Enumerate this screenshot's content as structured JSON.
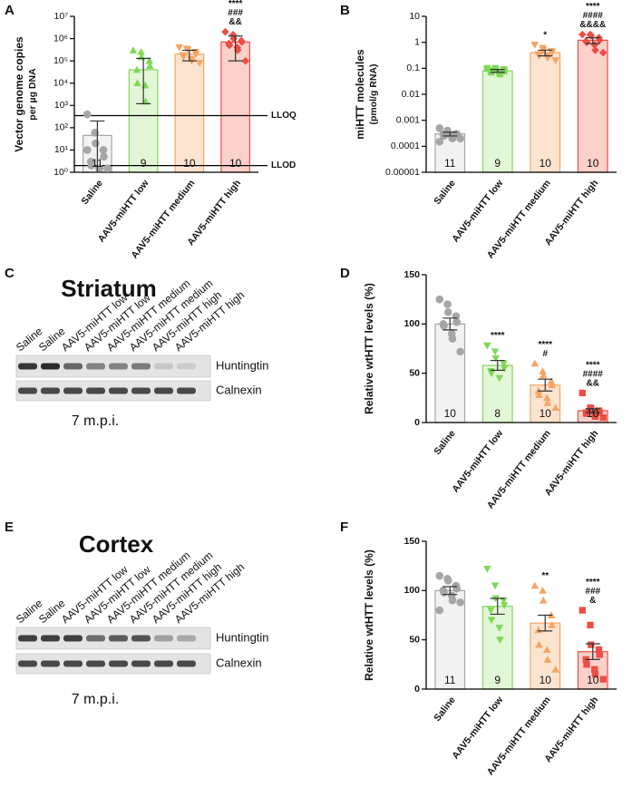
{
  "chart_data": [
    {
      "type": "bar",
      "panel": "A",
      "log_scale": true,
      "ylabel": [
        "Vector genome copies",
        "per µg DNA"
      ],
      "categories": [
        "Saline",
        "AAV5-miHTT low",
        "AAV5-miHTT medium",
        "AAV5-miHTT high"
      ],
      "values": [
        45,
        40000,
        200000,
        700000
      ],
      "error_bounds": [
        [
          1,
          200
        ],
        [
          1200,
          130000
        ],
        [
          100000,
          300000
        ],
        [
          100000,
          1300000
        ]
      ],
      "points": [
        [
          400,
          60,
          20,
          10,
          5,
          3,
          2,
          1.5,
          1.5,
          1.5,
          10
        ],
        [
          300000,
          250000,
          150000,
          100000,
          60000,
          40000,
          10000,
          8000,
          1500
        ],
        [
          400000,
          350000,
          300000,
          250000,
          200000,
          180000,
          150000,
          120000,
          100000,
          80000
        ],
        [
          2000000,
          1500000,
          1000000,
          800000,
          700000,
          600000,
          500000,
          400000,
          300000,
          100000
        ]
      ],
      "n": [
        11,
        9,
        10,
        10
      ],
      "annotations": [
        [],
        [],
        [],
        [
          "****",
          "###",
          "&&"
        ]
      ],
      "hlines": [
        {
          "value": 350,
          "label": "LLOQ"
        },
        {
          "value": 2,
          "label": "LLOD"
        }
      ],
      "colors": [
        "#a6a6a6",
        "#7ed957",
        "#f7a463",
        "#ee4d43"
      ],
      "fill_colors": [
        "#f2f2f2",
        "#e3f7d8",
        "#fde4d0",
        "#fbd1cc"
      ],
      "markers": [
        "circle",
        "triangle",
        "triangle-down",
        "diamond"
      ],
      "ylim": [
        1,
        10000000
      ],
      "yticks": [
        {
          "value": 1,
          "label": "10⁰"
        },
        {
          "value": 10,
          "label": "10¹"
        },
        {
          "value": 100,
          "label": "10²"
        },
        {
          "value": 1000,
          "label": "10³"
        },
        {
          "value": 10000,
          "label": "10⁴"
        },
        {
          "value": 100000,
          "label": "10⁵"
        },
        {
          "value": 1000000,
          "label": "10⁶"
        },
        {
          "value": 10000000,
          "label": "10⁷"
        }
      ]
    },
    {
      "type": "bar",
      "panel": "B",
      "log_scale": true,
      "ylabel": [
        "miHTT molecules",
        "(pmol/g RNA)"
      ],
      "categories": [
        "Saline",
        "AAV5-miHTT low",
        "AAV5-miHTT medium",
        "AAV5-miHTT high"
      ],
      "values": [
        0.0003,
        0.08,
        0.4,
        1.2
      ],
      "error_bounds": [
        [
          0.00025,
          0.00035
        ],
        [
          0.07,
          0.09
        ],
        [
          0.3,
          0.5
        ],
        [
          0.9,
          1.5
        ]
      ],
      "points": [
        [
          0.0005,
          0.0004,
          0.0003,
          0.0003,
          0.0003,
          0.00028,
          0.00025,
          0.00025,
          0.0002,
          0.0002,
          0.00015
        ],
        [
          0.1,
          0.1,
          0.09,
          0.09,
          0.08,
          0.08,
          0.07,
          0.07,
          0.06
        ],
        [
          0.8,
          0.6,
          0.5,
          0.45,
          0.4,
          0.35,
          0.3,
          0.3,
          0.25,
          0.2
        ],
        [
          2,
          2,
          1.8,
          1.5,
          1.2,
          1.1,
          1,
          0.8,
          0.5,
          0.4
        ]
      ],
      "n": [
        11,
        9,
        10,
        10
      ],
      "annotations": [
        [],
        [],
        [
          "*"
        ],
        [
          "****",
          "####",
          "&&&&"
        ]
      ],
      "colors": [
        "#a6a6a6",
        "#7ed957",
        "#f7a463",
        "#ee4d43"
      ],
      "fill_colors": [
        "#f2f2f2",
        "#e3f7d8",
        "#fde4d0",
        "#fbd1cc"
      ],
      "markers": [
        "circle",
        "square",
        "triangle-down",
        "diamond"
      ],
      "ylim": [
        1e-05,
        10
      ],
      "yticks": [
        1e-05,
        0.0001,
        0.001,
        0.01,
        0.1,
        1,
        10
      ]
    },
    {
      "type": "bar",
      "panel": "D",
      "log_scale": false,
      "ylabel": [
        "Relative wtHTT levels (%)"
      ],
      "categories": [
        "Saline",
        "AAV5-miHTT low",
        "AAV5-miHTT medium",
        "AAV5-miHTT high"
      ],
      "values": [
        100,
        58,
        38,
        12
      ],
      "error_bounds": [
        [
          94,
          106
        ],
        [
          53,
          63
        ],
        [
          32,
          44
        ],
        [
          10,
          14
        ]
      ],
      "points": [
        [
          125,
          120,
          112,
          108,
          102,
          100,
          98,
          90,
          85,
          72
        ],
        [
          78,
          72,
          65,
          60,
          55,
          52,
          50,
          45
        ],
        [
          60,
          52,
          48,
          42,
          38,
          32,
          28,
          25,
          20,
          15
        ],
        [
          30,
          15,
          14,
          12,
          10,
          10,
          9,
          8,
          6,
          5
        ]
      ],
      "n": [
        10,
        8,
        10,
        10
      ],
      "annotations": [
        [],
        [
          "****"
        ],
        [
          "****",
          "#"
        ],
        [
          "****",
          "####",
          "&&"
        ]
      ],
      "colors": [
        "#a6a6a6",
        "#7ed957",
        "#f7a463",
        "#ee4d43"
      ],
      "fill_colors": [
        "#f2f2f2",
        "#e3f7d8",
        "#fde4d0",
        "#fbd1cc"
      ],
      "markers": [
        "circle",
        "triangle-down",
        "triangle",
        "square"
      ],
      "ylim": [
        0,
        150
      ],
      "yticks": [
        0,
        50,
        100,
        150
      ]
    },
    {
      "type": "bar",
      "panel": "F",
      "log_scale": false,
      "ylabel": [
        "Relative wtHTT levels (%)"
      ],
      "categories": [
        "Saline",
        "AAV5-miHTT low",
        "AAV5-miHTT medium",
        "AAV5-miHTT high"
      ],
      "values": [
        100,
        84,
        67,
        38
      ],
      "error_bounds": [
        [
          96,
          104
        ],
        [
          76,
          92
        ],
        [
          59,
          75
        ],
        [
          30,
          46
        ]
      ],
      "points": [
        [
          115,
          112,
          110,
          105,
          102,
          100,
          98,
          95,
          90,
          88,
          80
        ],
        [
          122,
          105,
          92,
          90,
          85,
          80,
          70,
          62,
          50
        ],
        [
          105,
          100,
          90,
          75,
          65,
          60,
          45,
          40,
          30,
          20
        ],
        [
          80,
          65,
          45,
          40,
          35,
          30,
          25,
          20,
          15,
          10
        ]
      ],
      "n": [
        11,
        9,
        10,
        10
      ],
      "annotations": [
        [],
        [],
        [
          "**"
        ],
        [
          "****",
          "###",
          "&"
        ]
      ],
      "colors": [
        "#a6a6a6",
        "#7ed957",
        "#f7a463",
        "#ee4d43"
      ],
      "fill_colors": [
        "#f2f2f2",
        "#e3f7d8",
        "#fde4d0",
        "#fbd1cc"
      ],
      "markers": [
        "circle",
        "triangle-down",
        "triangle",
        "square"
      ],
      "ylim": [
        0,
        150
      ],
      "yticks": [
        0,
        50,
        100,
        150
      ]
    }
  ],
  "blots": [
    {
      "panel": "C",
      "title": "Striatum",
      "lanes": [
        "Saline",
        "Saline",
        "AAV5-miHTT low",
        "AAV5-miHTT low",
        "AAV5-miHTT medium",
        "AAV5-miHTT medium",
        "AAV5-miHTT high",
        "AAV5-miHTT high"
      ],
      "bands": [
        "Huntingtin",
        "Calnexin"
      ],
      "caption": "7 m.p.i."
    },
    {
      "panel": "E",
      "title": "Cortex",
      "lanes": [
        "Saline",
        "Saline",
        "AAV5-miHTT low",
        "AAV5-miHTT low",
        "AAV5-miHTT medium",
        "AAV5-miHTT medium",
        "AAV5-miHTT high",
        "AAV5-miHTT high"
      ],
      "bands": [
        "Huntingtin",
        "Calnexin"
      ],
      "caption": "7 m.p.i."
    }
  ]
}
